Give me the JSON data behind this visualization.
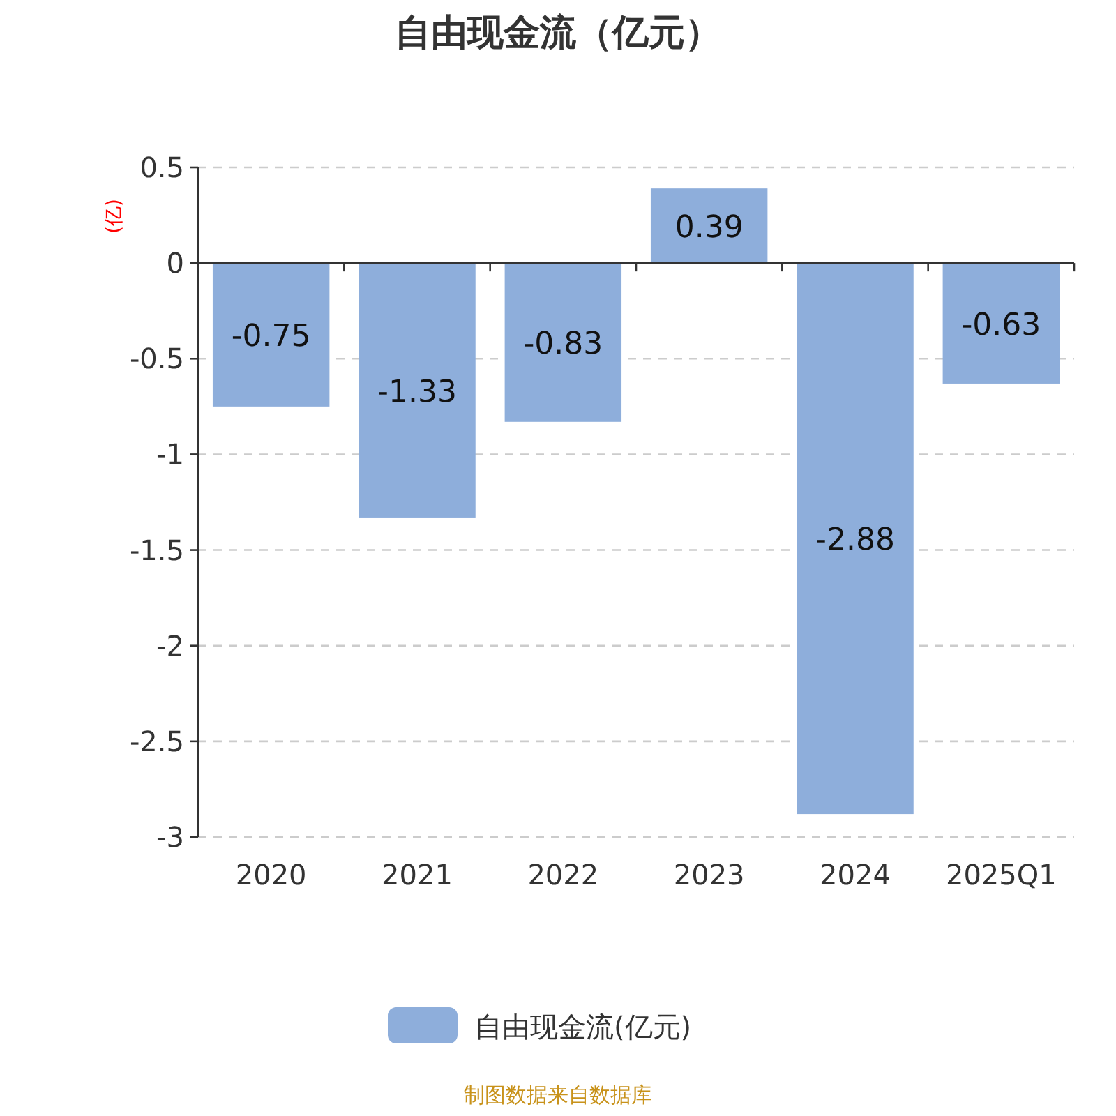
{
  "chart_data": {
    "type": "bar",
    "title": "自由现金流（亿元）",
    "ylabel": "(亿)",
    "categories": [
      "2020",
      "2021",
      "2022",
      "2023",
      "2024",
      "2025Q1"
    ],
    "series": [
      {
        "name": "自由现金流(亿元)",
        "color": "#8eaedb",
        "values": [
          -0.75,
          -1.33,
          -0.83,
          0.39,
          -2.88,
          -0.63
        ]
      }
    ],
    "ylim": [
      -3,
      0.5
    ],
    "yticks": [
      -3,
      -2.5,
      -2,
      -1.5,
      -1,
      -0.5,
      0,
      0.5
    ],
    "grid": "y",
    "legend": "bottom",
    "data_labels": true,
    "annotations": [
      "制图数据来自数据库"
    ]
  }
}
